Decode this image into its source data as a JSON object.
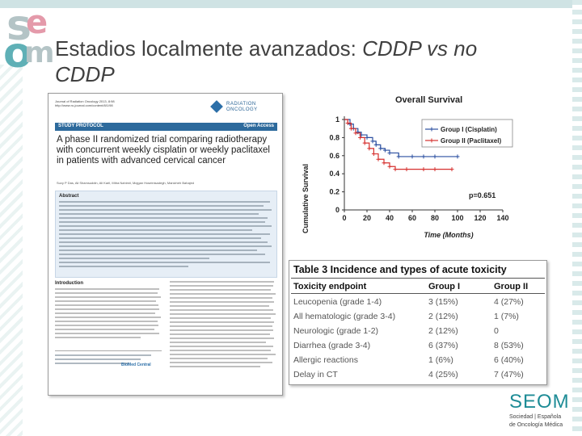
{
  "slide": {
    "title_main": "Estadios localmente avanzados: ",
    "title_italic": "CDDP vs no",
    "title_line2": "CDDP"
  },
  "deco_letters": {
    "s": "s",
    "e": "e",
    "o": "o",
    "m": "m",
    "colors": {
      "teal": "#5fb0b6",
      "pink": "#e49aaa",
      "gray": "#b4c4c6"
    }
  },
  "paper": {
    "journal_line1": "Journal of Radiation Oncology 2013, 8:98",
    "journal_line2": "http://www.ro-journal.com/content/8/1/98",
    "logo_line1": "RADIATION",
    "logo_line2": "ONCOLOGY",
    "type_label": "STUDY PROTOCOL",
    "access_label": "Open Access",
    "article_title": "A phase II randomized trial comparing radiotherapy with concurrent weekly cisplatin or weekly paclitaxel in patients with advanced cervical cancer",
    "authors": "Suvy P Das, Ali Shamsuddin, Ali Karil, Mitra Nahimii, Mojgan Hoseinisadegh, Manizheh Bahajed",
    "abstract_heading": "Abstract",
    "intro_heading": "Introduction",
    "publisher": "BioMed Central"
  },
  "survival_chart": {
    "title": "Overall Survival",
    "xlabel": "Time (Months)",
    "ylabel": "Cumulative Survival",
    "pvalue": "p=0.651",
    "legend": [
      "Group I (Cisplatin)",
      "Group II (Paclitaxel)"
    ]
  },
  "chart_data": {
    "type": "line",
    "title": "Overall Survival",
    "xlabel": "Time (Months)",
    "ylabel": "Cumulative Survival",
    "xlim": [
      0,
      140
    ],
    "ylim": [
      0,
      1
    ],
    "xticks": [
      "0",
      "20",
      "40",
      "60",
      "80",
      "100",
      "120",
      "140"
    ],
    "yticks": [
      "0",
      "0.2",
      "0.4",
      "0.6",
      "0.8",
      "1"
    ],
    "series": [
      {
        "name": "Group I (Cisplatin)",
        "color": "#2b4fa0",
        "x": [
          0,
          5,
          8,
          12,
          15,
          20,
          25,
          28,
          32,
          36,
          40,
          48,
          60,
          70,
          80,
          100
        ],
        "y": [
          1.0,
          0.95,
          0.9,
          0.86,
          0.83,
          0.8,
          0.76,
          0.72,
          0.68,
          0.66,
          0.63,
          0.59,
          0.59,
          0.59,
          0.59,
          0.59
        ]
      },
      {
        "name": "Group II (Paclitaxel)",
        "color": "#d6302e",
        "x": [
          0,
          3,
          6,
          10,
          14,
          18,
          22,
          26,
          30,
          35,
          40,
          45,
          55,
          70,
          80,
          95
        ],
        "y": [
          1.0,
          0.96,
          0.9,
          0.85,
          0.8,
          0.74,
          0.68,
          0.62,
          0.56,
          0.52,
          0.48,
          0.45,
          0.45,
          0.45,
          0.45,
          0.45
        ]
      }
    ],
    "annotations": [
      "p=0.651"
    ]
  },
  "tox_table": {
    "title": "Table 3 Incidence and types of acute toxicity",
    "headers": [
      "Toxicity endpoint",
      "Group I",
      "Group II"
    ],
    "rows": [
      [
        "Leucopenia (grade 1-4)",
        "3 (15%)",
        "4 (27%)"
      ],
      [
        "All hematologic (grade 3-4)",
        "2 (12%)",
        "1 (7%)"
      ],
      [
        "Neurologic (grade 1-2)",
        "2 (12%)",
        "0"
      ],
      [
        "Diarrhea (grade 3-4)",
        "6 (37%)",
        "8 (53%)"
      ],
      [
        "Allergic reactions",
        "1 (6%)",
        "6 (40%)"
      ],
      [
        "Delay in CT",
        "4 (25%)",
        "7 (47%)"
      ]
    ]
  },
  "seom": {
    "name": "SEOM",
    "sub1": "Sociedad | Española",
    "sub2": "de Oncología Médica"
  }
}
